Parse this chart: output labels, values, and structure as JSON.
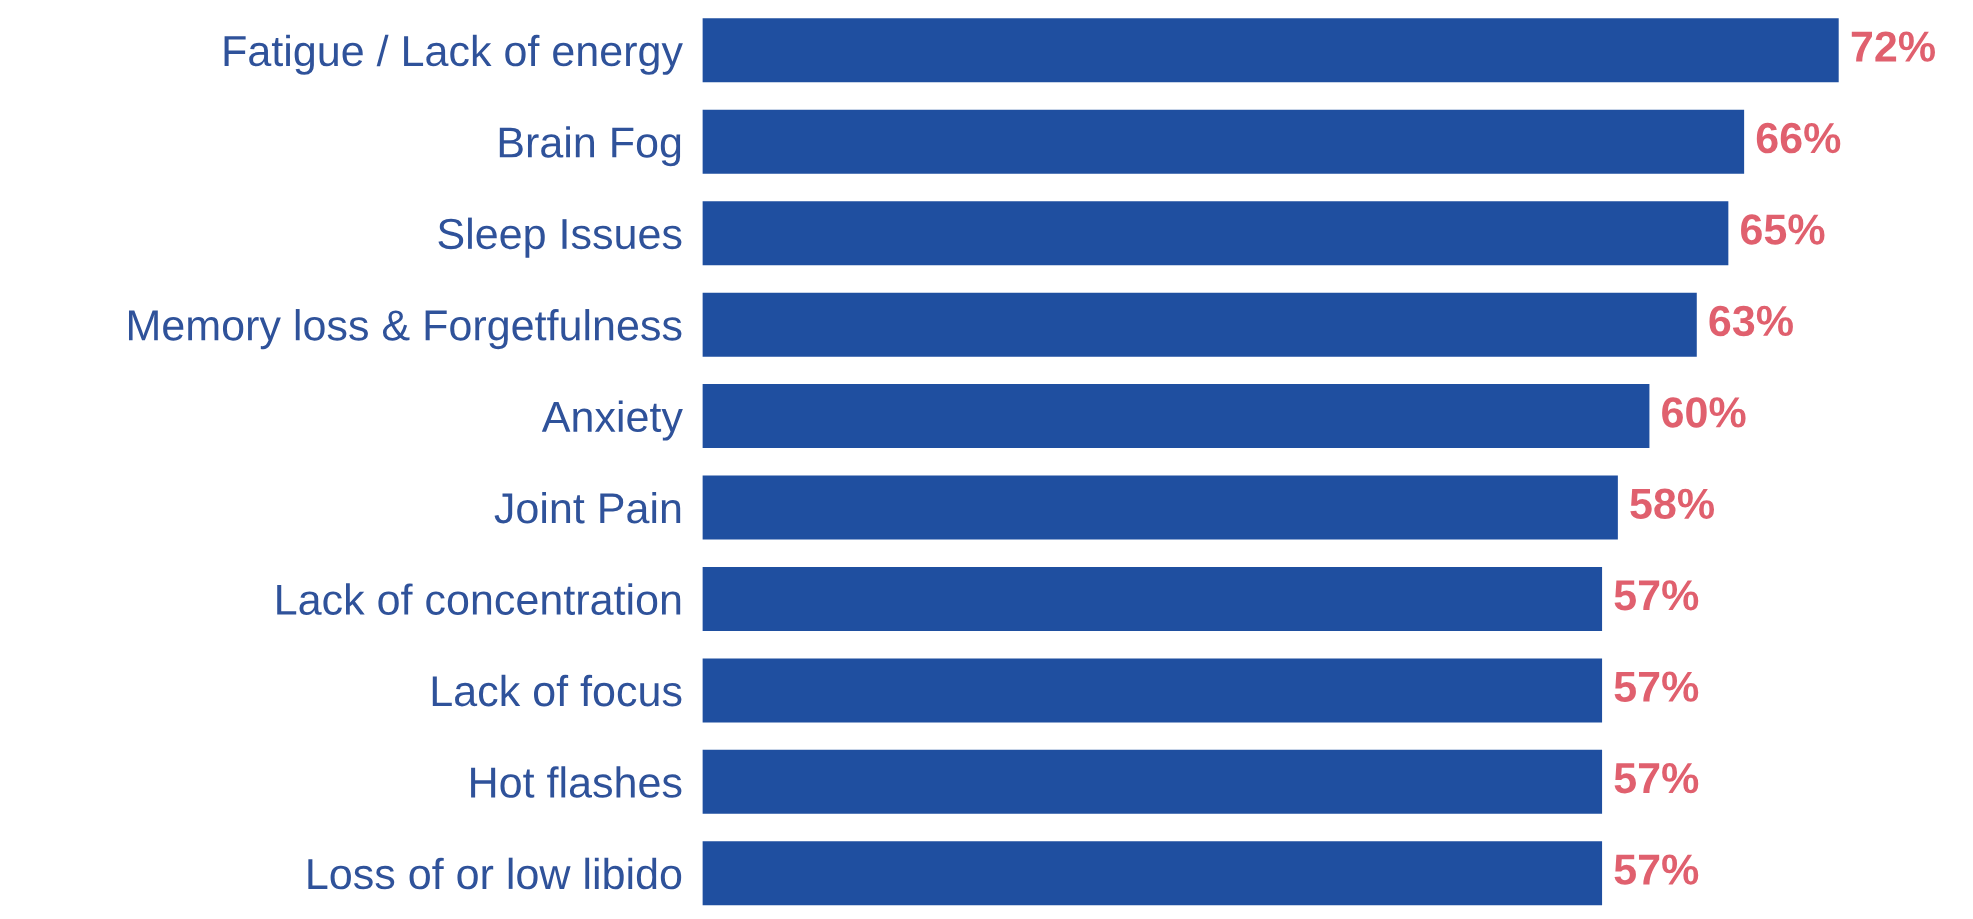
{
  "chart_data": {
    "type": "bar",
    "orientation": "horizontal",
    "categories": [
      "Fatigue / Lack of energy",
      "Brain Fog",
      "Sleep Issues",
      "Memory loss & Forgetfulness",
      "Anxiety",
      "Joint Pain",
      "Lack of concentration",
      "Lack of focus",
      "Hot flashes",
      "Loss of or low libido"
    ],
    "values": [
      72,
      66,
      65,
      63,
      60,
      58,
      57,
      57,
      57,
      57
    ],
    "value_labels": [
      "72%",
      "66%",
      "65%",
      "63%",
      "60%",
      "58%",
      "57%",
      "57%",
      "57%",
      "57%"
    ],
    "color": "#1f4fa0",
    "tick_labels": "y",
    "grid": false,
    "legend": false
  }
}
